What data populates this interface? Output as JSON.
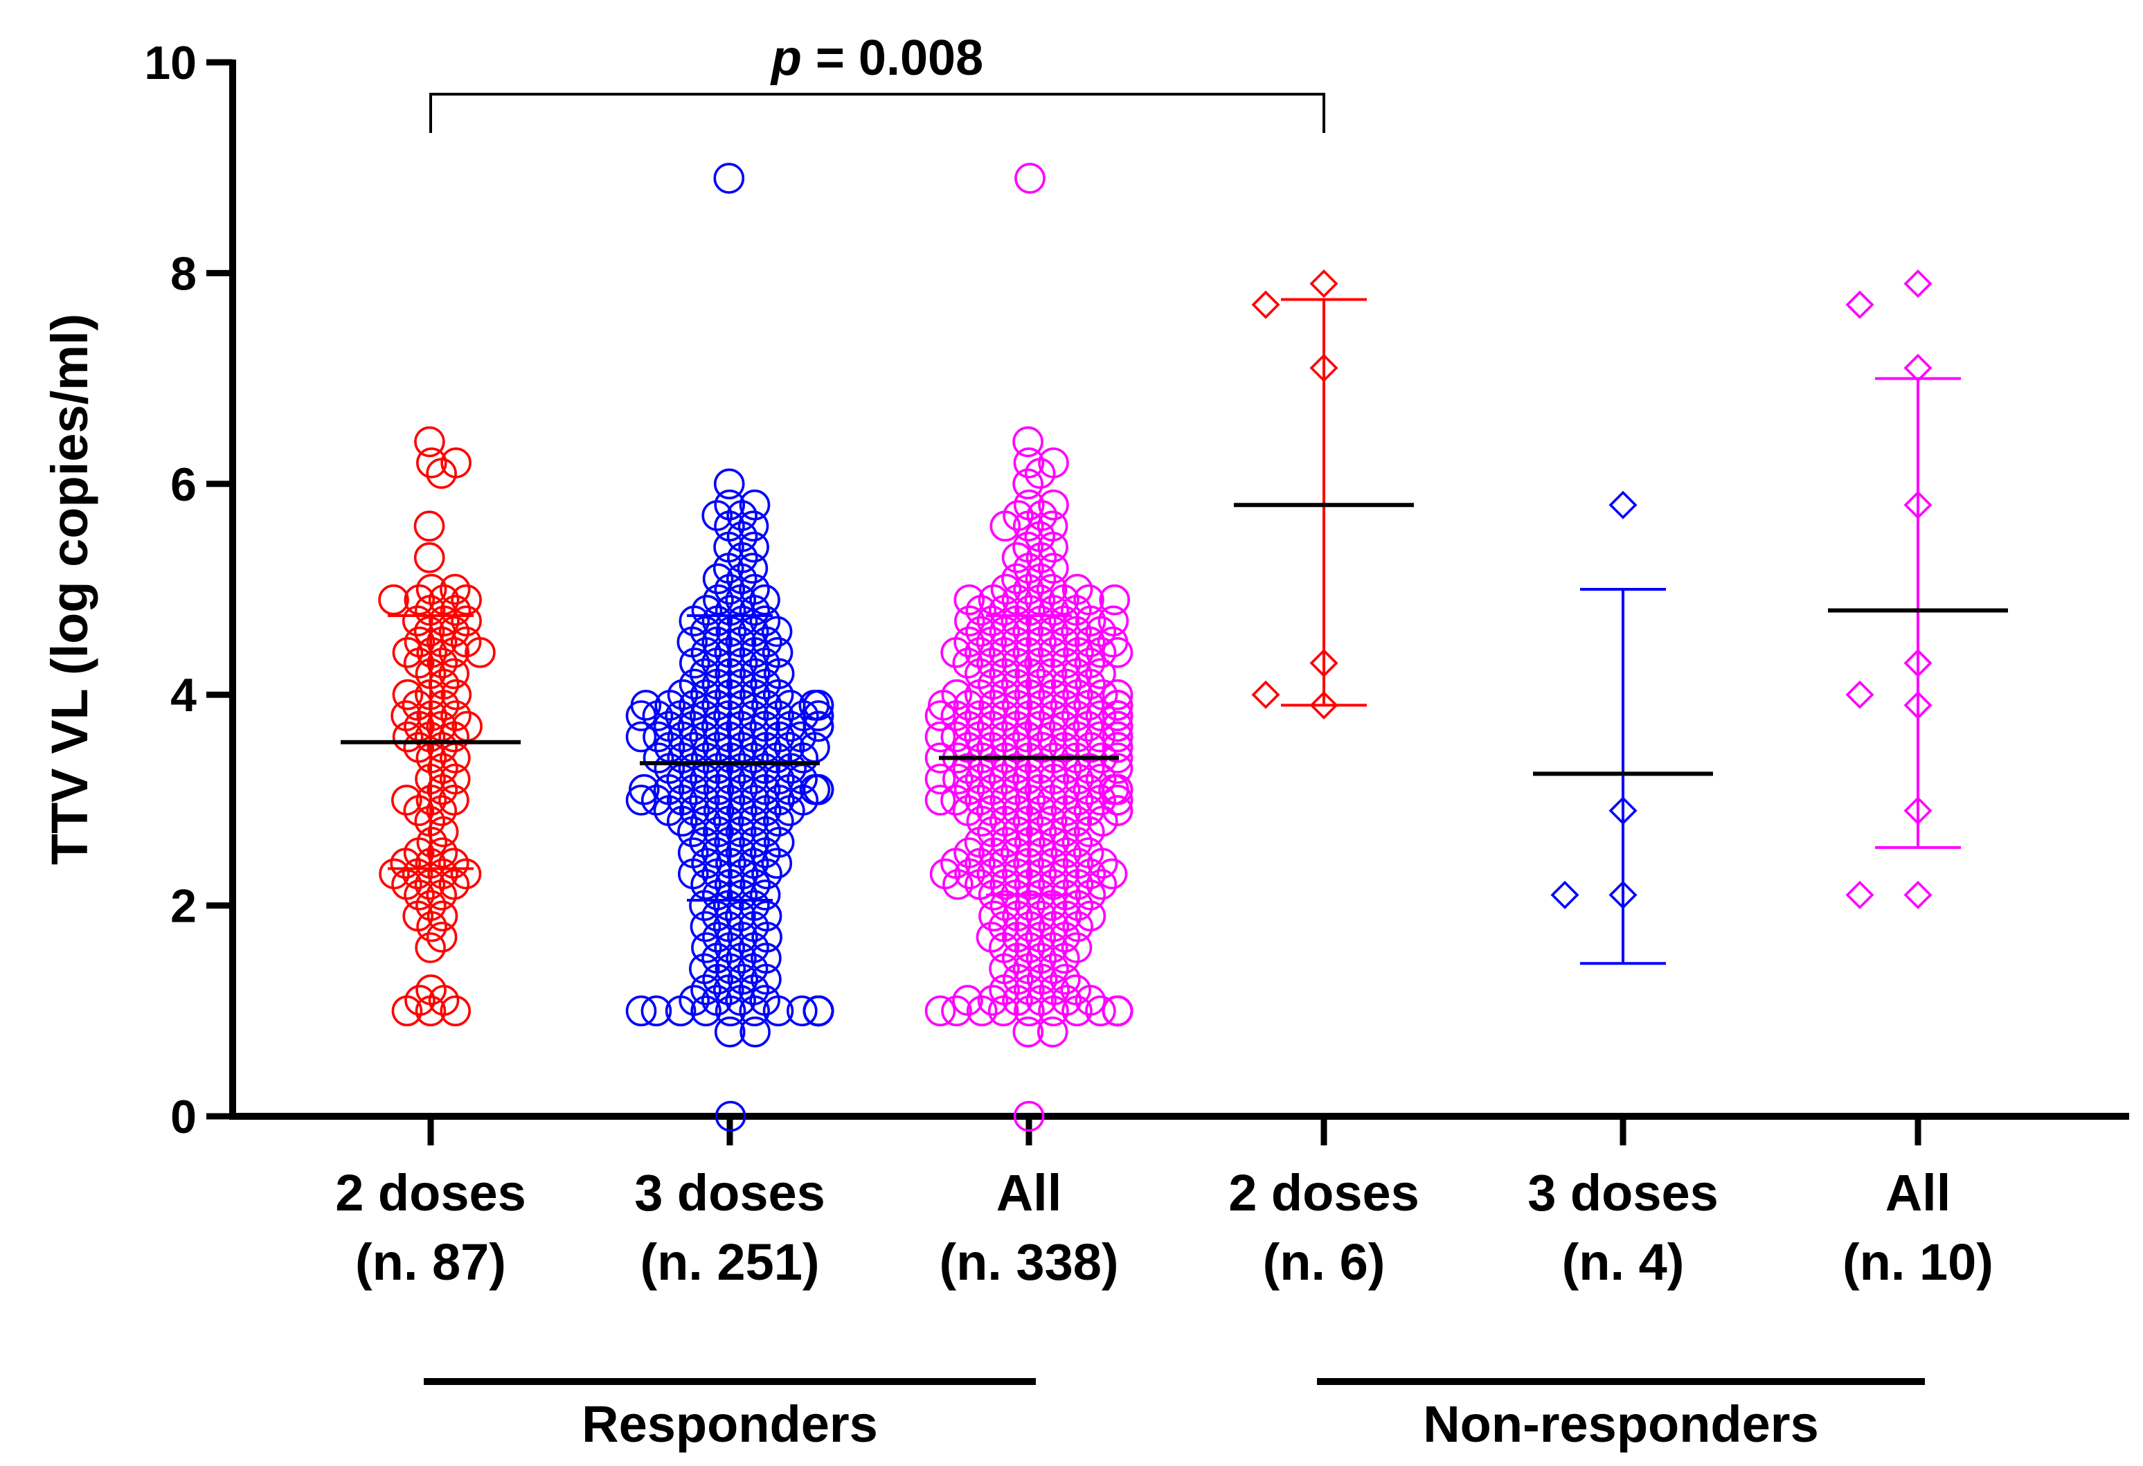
{
  "chart_data": {
    "type": "scatter",
    "title": "",
    "ylabel": "TTV VL (log copies/ml)",
    "xlabel": "",
    "ylim": [
      0,
      10
    ],
    "yticks": [
      0,
      2,
      4,
      6,
      8,
      10
    ],
    "grid": false,
    "significance": {
      "p_label": "p",
      "value_label": " = 0.008",
      "from_group": 0,
      "to_group": 3
    },
    "supergroups": [
      {
        "label": "Responders",
        "groups": [
          0,
          1,
          2
        ]
      },
      {
        "label": "Non-responders",
        "groups": [
          3,
          4,
          5
        ]
      }
    ],
    "groups": [
      {
        "label_line1": "2 doses",
        "label_line2": "(n. 87)",
        "color": "#ff0000",
        "marker": "circle",
        "mean": 3.55,
        "sd_low": 2.35,
        "sd_high": 4.75,
        "values": [
          6.4,
          6.2,
          6.2,
          6.1,
          5.6,
          5.3,
          5.0,
          5.0,
          4.9,
          4.9,
          4.9,
          4.9,
          4.8,
          4.8,
          4.7,
          4.7,
          4.7,
          4.6,
          4.6,
          4.5,
          4.5,
          4.5,
          4.4,
          4.4,
          4.4,
          4.4,
          4.3,
          4.3,
          4.2,
          4.2,
          4.1,
          4.0,
          4.0,
          4.0,
          3.9,
          3.9,
          3.8,
          3.8,
          3.8,
          3.7,
          3.7,
          3.7,
          3.6,
          3.6,
          3.6,
          3.5,
          3.5,
          3.4,
          3.4,
          3.3,
          3.2,
          3.2,
          3.1,
          3.0,
          3.0,
          3.0,
          2.9,
          2.9,
          2.8,
          2.7,
          2.6,
          2.5,
          2.5,
          2.4,
          2.4,
          2.4,
          2.3,
          2.3,
          2.3,
          2.3,
          2.2,
          2.2,
          2.2,
          2.1,
          2.1,
          2.0,
          1.9,
          1.9,
          1.8,
          1.7,
          1.6,
          1.2,
          1.1,
          1.1,
          1.0,
          1.0,
          1.0
        ]
      },
      {
        "label_line1": "3 doses",
        "label_line2": "(n. 251)",
        "color": "#0000ff",
        "marker": "circle",
        "mean": 3.35,
        "sd_low": 2.05,
        "sd_high": 4.75,
        "values": [
          8.9,
          6.0,
          5.8,
          5.8,
          5.7,
          5.7,
          5.6,
          5.6,
          5.5,
          5.4,
          5.4,
          5.3,
          5.2,
          5.2,
          5.1,
          5.1,
          5.0,
          5.0,
          4.9,
          4.9,
          4.9,
          4.8,
          4.8,
          4.8,
          4.7,
          4.7,
          4.7,
          4.7,
          4.6,
          4.6,
          4.6,
          4.6,
          4.5,
          4.5,
          4.5,
          4.5,
          4.4,
          4.4,
          4.4,
          4.4,
          4.3,
          4.3,
          4.3,
          4.3,
          4.2,
          4.2,
          4.2,
          4.2,
          4.1,
          4.1,
          4.1,
          4.1,
          4.0,
          4.0,
          4.0,
          4.0,
          4.0,
          3.9,
          3.9,
          3.9,
          3.9,
          3.9,
          3.9,
          3.9,
          3.9,
          3.9,
          3.9,
          3.8,
          3.8,
          3.8,
          3.8,
          3.8,
          3.8,
          3.8,
          3.8,
          3.8,
          3.8,
          3.7,
          3.7,
          3.7,
          3.7,
          3.7,
          3.7,
          3.7,
          3.7,
          3.7,
          3.6,
          3.6,
          3.6,
          3.6,
          3.6,
          3.6,
          3.6,
          3.6,
          3.5,
          3.5,
          3.5,
          3.5,
          3.5,
          3.5,
          3.5,
          3.4,
          3.4,
          3.4,
          3.4,
          3.4,
          3.4,
          3.4,
          3.3,
          3.3,
          3.3,
          3.3,
          3.3,
          3.3,
          3.2,
          3.2,
          3.2,
          3.2,
          3.2,
          3.2,
          3.1,
          3.1,
          3.1,
          3.1,
          3.1,
          3.1,
          3.1,
          3.1,
          3.1,
          3.1,
          3.1,
          3.0,
          3.0,
          3.0,
          3.0,
          3.0,
          3.0,
          3.0,
          3.0,
          2.9,
          2.9,
          2.9,
          2.9,
          2.9,
          2.9,
          2.8,
          2.8,
          2.8,
          2.8,
          2.8,
          2.7,
          2.7,
          2.7,
          2.7,
          2.6,
          2.6,
          2.6,
          2.6,
          2.5,
          2.5,
          2.5,
          2.5,
          2.4,
          2.4,
          2.4,
          2.4,
          2.3,
          2.3,
          2.3,
          2.3,
          2.2,
          2.2,
          2.2,
          2.1,
          2.1,
          2.1,
          2.0,
          2.0,
          2.0,
          1.9,
          1.9,
          1.9,
          1.8,
          1.8,
          1.8,
          1.7,
          1.7,
          1.7,
          1.6,
          1.6,
          1.6,
          1.5,
          1.5,
          1.5,
          1.4,
          1.4,
          1.4,
          1.3,
          1.3,
          1.3,
          1.2,
          1.2,
          1.2,
          1.1,
          1.1,
          1.1,
          1.1,
          1.0,
          1.0,
          1.0,
          1.0,
          1.0,
          1.0,
          1.0,
          1.0,
          1.0,
          1.0,
          1.0,
          1.0,
          1.0,
          1.0,
          1.0,
          1.0,
          1.0,
          1.0,
          1.0,
          1.0,
          1.0,
          1.0,
          1.0,
          1.0,
          1.0,
          1.0,
          1.0,
          1.0,
          1.0,
          1.0,
          1.0,
          1.0,
          1.0,
          1.0,
          1.0,
          1.0,
          1.0,
          1.0,
          1.0,
          0.8,
          0.8,
          0.0
        ]
      },
      {
        "label_line1": "All",
        "label_line2": "(n. 338)",
        "color": "#ff00ff",
        "marker": "circle",
        "mean": 3.4,
        "sd_low": 2.1,
        "sd_high": 4.75,
        "values": [
          8.9,
          6.4,
          6.2,
          6.2,
          6.1,
          6.0,
          5.8,
          5.8,
          5.7,
          5.7,
          5.6,
          5.6,
          5.6,
          5.5,
          5.4,
          5.4,
          5.3,
          5.3,
          5.2,
          5.2,
          5.1,
          5.1,
          5.0,
          5.0,
          5.0,
          5.0,
          4.9,
          4.9,
          4.9,
          4.9,
          4.9,
          4.9,
          4.9,
          4.8,
          4.8,
          4.8,
          4.8,
          4.8,
          4.7,
          4.7,
          4.7,
          4.7,
          4.7,
          4.7,
          4.7,
          4.6,
          4.6,
          4.6,
          4.6,
          4.6,
          4.6,
          4.5,
          4.5,
          4.5,
          4.5,
          4.5,
          4.5,
          4.5,
          4.4,
          4.4,
          4.4,
          4.4,
          4.4,
          4.4,
          4.4,
          4.4,
          4.3,
          4.3,
          4.3,
          4.3,
          4.3,
          4.3,
          4.2,
          4.2,
          4.2,
          4.2,
          4.2,
          4.2,
          4.1,
          4.1,
          4.1,
          4.1,
          4.1,
          4.0,
          4.0,
          4.0,
          4.0,
          4.0,
          4.0,
          4.0,
          4.0,
          3.9,
          3.9,
          3.9,
          3.9,
          3.9,
          3.9,
          3.9,
          3.9,
          3.9,
          3.9,
          3.9,
          3.9,
          3.8,
          3.8,
          3.8,
          3.8,
          3.8,
          3.8,
          3.8,
          3.8,
          3.8,
          3.8,
          3.8,
          3.8,
          3.8,
          3.7,
          3.7,
          3.7,
          3.7,
          3.7,
          3.7,
          3.7,
          3.7,
          3.7,
          3.7,
          3.7,
          3.7,
          3.6,
          3.6,
          3.6,
          3.6,
          3.6,
          3.6,
          3.6,
          3.6,
          3.6,
          3.6,
          3.6,
          3.5,
          3.5,
          3.5,
          3.5,
          3.5,
          3.5,
          3.5,
          3.5,
          3.5,
          3.4,
          3.4,
          3.4,
          3.4,
          3.4,
          3.4,
          3.4,
          3.4,
          3.4,
          3.3,
          3.3,
          3.3,
          3.3,
          3.3,
          3.3,
          3.3,
          3.2,
          3.2,
          3.2,
          3.2,
          3.2,
          3.2,
          3.2,
          3.2,
          3.1,
          3.1,
          3.1,
          3.1,
          3.1,
          3.1,
          3.1,
          3.1,
          3.1,
          3.1,
          3.1,
          3.1,
          3.0,
          3.0,
          3.0,
          3.0,
          3.0,
          3.0,
          3.0,
          3.0,
          3.0,
          3.0,
          3.0,
          2.9,
          2.9,
          2.9,
          2.9,
          2.9,
          2.9,
          2.9,
          2.9,
          2.8,
          2.8,
          2.8,
          2.8,
          2.8,
          2.8,
          2.7,
          2.7,
          2.7,
          2.7,
          2.7,
          2.6,
          2.6,
          2.6,
          2.6,
          2.6,
          2.5,
          2.5,
          2.5,
          2.5,
          2.5,
          2.5,
          2.4,
          2.4,
          2.4,
          2.4,
          2.4,
          2.4,
          2.4,
          2.3,
          2.3,
          2.3,
          2.3,
          2.3,
          2.3,
          2.3,
          2.3,
          2.2,
          2.2,
          2.2,
          2.2,
          2.2,
          2.2,
          2.2,
          2.1,
          2.1,
          2.1,
          2.1,
          2.1,
          2.0,
          2.0,
          2.0,
          2.0,
          1.9,
          1.9,
          1.9,
          1.9,
          1.9,
          1.8,
          1.8,
          1.8,
          1.8,
          1.7,
          1.7,
          1.7,
          1.7,
          1.6,
          1.6,
          1.6,
          1.6,
          1.5,
          1.5,
          1.5,
          1.4,
          1.4,
          1.4,
          1.3,
          1.3,
          1.3,
          1.2,
          1.2,
          1.2,
          1.2,
          1.1,
          1.1,
          1.1,
          1.1,
          1.1,
          1.1,
          1.0,
          1.0,
          1.0,
          1.0,
          1.0,
          1.0,
          1.0,
          1.0,
          1.0,
          1.0,
          1.0,
          1.0,
          1.0,
          1.0,
          1.0,
          1.0,
          1.0,
          1.0,
          1.0,
          1.0,
          1.0,
          1.0,
          1.0,
          1.0,
          1.0,
          1.0,
          1.0,
          1.0,
          1.0,
          1.0,
          1.0,
          1.0,
          1.0,
          1.0,
          1.0,
          1.0,
          1.0,
          1.0,
          1.0,
          1.0,
          1.0,
          1.0,
          0.8,
          0.8,
          0.0
        ]
      },
      {
        "label_line1": "2 doses",
        "label_line2": "(n. 6)",
        "color": "#ff0000",
        "marker": "diamond",
        "mean": 5.8,
        "sd_low": 3.9,
        "sd_high": 7.75,
        "values": [
          7.9,
          7.7,
          7.1,
          4.3,
          4.0,
          3.9
        ]
      },
      {
        "label_line1": "3 doses",
        "label_line2": "(n. 4)",
        "color": "#0000ff",
        "marker": "diamond",
        "mean": 3.25,
        "sd_low": 1.45,
        "sd_high": 5.0,
        "values": [
          5.8,
          2.9,
          2.1,
          2.1
        ]
      },
      {
        "label_line1": "All",
        "label_line2": "(n. 10)",
        "color": "#ff00ff",
        "marker": "diamond",
        "mean": 4.8,
        "sd_low": 2.55,
        "sd_high": 7.0,
        "values": [
          7.9,
          7.7,
          7.1,
          5.8,
          4.3,
          4.0,
          3.9,
          2.9,
          2.1,
          2.1
        ]
      }
    ]
  }
}
